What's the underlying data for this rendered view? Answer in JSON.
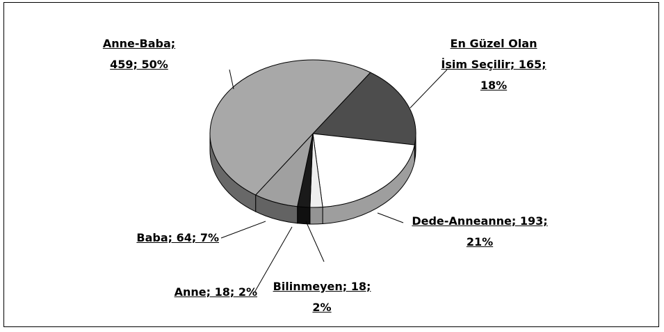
{
  "chart_data": {
    "type": "pie",
    "values": [
      165,
      193,
      18,
      18,
      64,
      459
    ],
    "value_labels": [
      "En Güzel Olan İsim Seçilir; 165; 18%",
      "Dede-Anneanne; 193; 21%",
      "Bilinmeyen; 18; 2%",
      "Anne; 18; 2%",
      "Baba; 64; 7%",
      "Anne-Baba; 459; 50%"
    ],
    "colors": [
      "#4d4d4d",
      "#ffffff",
      "#eeeeee",
      "#1a1a1a",
      "#a0a0a0",
      "#a8a8a8"
    ]
  }
}
